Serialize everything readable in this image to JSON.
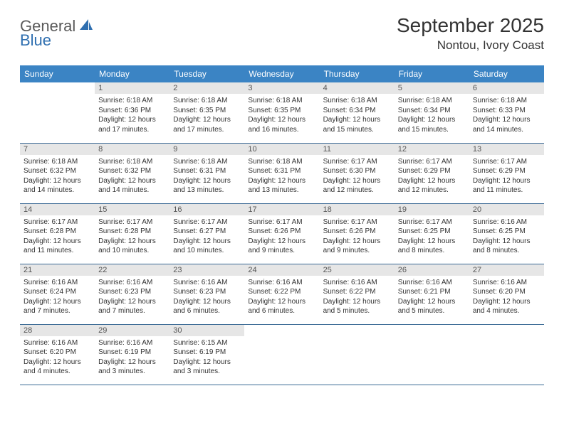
{
  "logo": {
    "general": "General",
    "blue": "Blue"
  },
  "header": {
    "month_title": "September 2025",
    "location": "Nontou, Ivory Coast"
  },
  "day_labels": [
    "Sunday",
    "Monday",
    "Tuesday",
    "Wednesday",
    "Thursday",
    "Friday",
    "Saturday"
  ],
  "colors": {
    "header_bg": "#3b84c4",
    "header_text": "#ffffff",
    "daynum_bg": "#e6e6e6",
    "daynum_text": "#555555",
    "border": "#3b6a95",
    "logo_blue": "#2f6fb0",
    "logo_gray": "#5a5a5a"
  },
  "weeks": [
    [
      null,
      {
        "n": "1",
        "sunrise": "6:18 AM",
        "sunset": "6:36 PM",
        "daylight": "12 hours and 17 minutes."
      },
      {
        "n": "2",
        "sunrise": "6:18 AM",
        "sunset": "6:35 PM",
        "daylight": "12 hours and 17 minutes."
      },
      {
        "n": "3",
        "sunrise": "6:18 AM",
        "sunset": "6:35 PM",
        "daylight": "12 hours and 16 minutes."
      },
      {
        "n": "4",
        "sunrise": "6:18 AM",
        "sunset": "6:34 PM",
        "daylight": "12 hours and 15 minutes."
      },
      {
        "n": "5",
        "sunrise": "6:18 AM",
        "sunset": "6:34 PM",
        "daylight": "12 hours and 15 minutes."
      },
      {
        "n": "6",
        "sunrise": "6:18 AM",
        "sunset": "6:33 PM",
        "daylight": "12 hours and 14 minutes."
      }
    ],
    [
      {
        "n": "7",
        "sunrise": "6:18 AM",
        "sunset": "6:32 PM",
        "daylight": "12 hours and 14 minutes."
      },
      {
        "n": "8",
        "sunrise": "6:18 AM",
        "sunset": "6:32 PM",
        "daylight": "12 hours and 14 minutes."
      },
      {
        "n": "9",
        "sunrise": "6:18 AM",
        "sunset": "6:31 PM",
        "daylight": "12 hours and 13 minutes."
      },
      {
        "n": "10",
        "sunrise": "6:18 AM",
        "sunset": "6:31 PM",
        "daylight": "12 hours and 13 minutes."
      },
      {
        "n": "11",
        "sunrise": "6:17 AM",
        "sunset": "6:30 PM",
        "daylight": "12 hours and 12 minutes."
      },
      {
        "n": "12",
        "sunrise": "6:17 AM",
        "sunset": "6:29 PM",
        "daylight": "12 hours and 12 minutes."
      },
      {
        "n": "13",
        "sunrise": "6:17 AM",
        "sunset": "6:29 PM",
        "daylight": "12 hours and 11 minutes."
      }
    ],
    [
      {
        "n": "14",
        "sunrise": "6:17 AM",
        "sunset": "6:28 PM",
        "daylight": "12 hours and 11 minutes."
      },
      {
        "n": "15",
        "sunrise": "6:17 AM",
        "sunset": "6:28 PM",
        "daylight": "12 hours and 10 minutes."
      },
      {
        "n": "16",
        "sunrise": "6:17 AM",
        "sunset": "6:27 PM",
        "daylight": "12 hours and 10 minutes."
      },
      {
        "n": "17",
        "sunrise": "6:17 AM",
        "sunset": "6:26 PM",
        "daylight": "12 hours and 9 minutes."
      },
      {
        "n": "18",
        "sunrise": "6:17 AM",
        "sunset": "6:26 PM",
        "daylight": "12 hours and 9 minutes."
      },
      {
        "n": "19",
        "sunrise": "6:17 AM",
        "sunset": "6:25 PM",
        "daylight": "12 hours and 8 minutes."
      },
      {
        "n": "20",
        "sunrise": "6:16 AM",
        "sunset": "6:25 PM",
        "daylight": "12 hours and 8 minutes."
      }
    ],
    [
      {
        "n": "21",
        "sunrise": "6:16 AM",
        "sunset": "6:24 PM",
        "daylight": "12 hours and 7 minutes."
      },
      {
        "n": "22",
        "sunrise": "6:16 AM",
        "sunset": "6:23 PM",
        "daylight": "12 hours and 7 minutes."
      },
      {
        "n": "23",
        "sunrise": "6:16 AM",
        "sunset": "6:23 PM",
        "daylight": "12 hours and 6 minutes."
      },
      {
        "n": "24",
        "sunrise": "6:16 AM",
        "sunset": "6:22 PM",
        "daylight": "12 hours and 6 minutes."
      },
      {
        "n": "25",
        "sunrise": "6:16 AM",
        "sunset": "6:22 PM",
        "daylight": "12 hours and 5 minutes."
      },
      {
        "n": "26",
        "sunrise": "6:16 AM",
        "sunset": "6:21 PM",
        "daylight": "12 hours and 5 minutes."
      },
      {
        "n": "27",
        "sunrise": "6:16 AM",
        "sunset": "6:20 PM",
        "daylight": "12 hours and 4 minutes."
      }
    ],
    [
      {
        "n": "28",
        "sunrise": "6:16 AM",
        "sunset": "6:20 PM",
        "daylight": "12 hours and 4 minutes."
      },
      {
        "n": "29",
        "sunrise": "6:16 AM",
        "sunset": "6:19 PM",
        "daylight": "12 hours and 3 minutes."
      },
      {
        "n": "30",
        "sunrise": "6:15 AM",
        "sunset": "6:19 PM",
        "daylight": "12 hours and 3 minutes."
      },
      null,
      null,
      null,
      null
    ]
  ],
  "labels": {
    "sunrise_prefix": "Sunrise: ",
    "sunset_prefix": "Sunset: ",
    "daylight_prefix": "Daylight: "
  }
}
